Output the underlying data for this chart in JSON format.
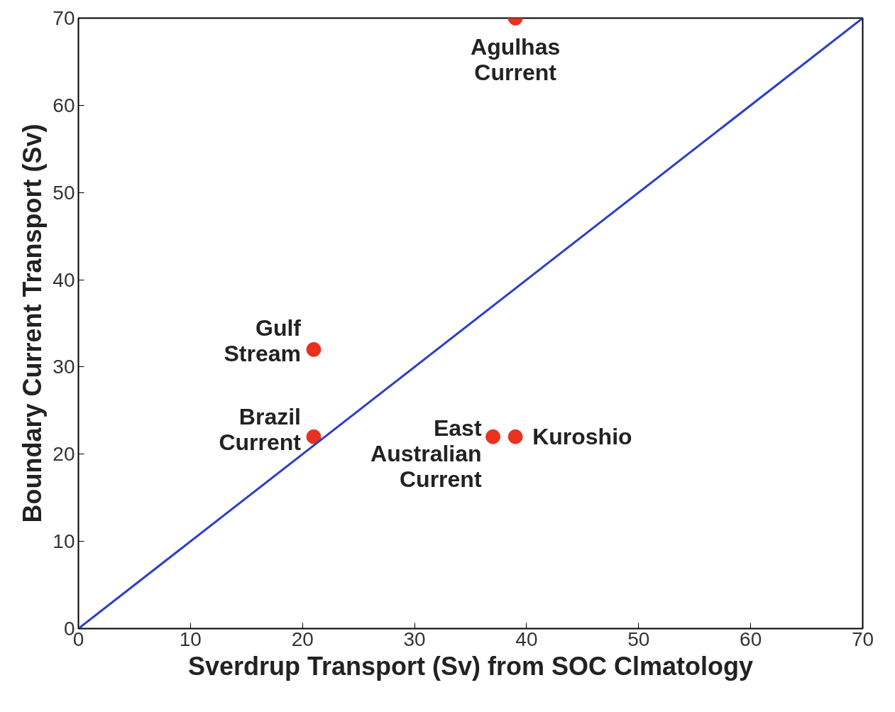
{
  "chart_data": {
    "type": "scatter",
    "xlabel": "Sverdrup Transport (Sv) from SOC Clmatology",
    "ylabel": "Boundary Current Transport (Sv)",
    "series": [
      {
        "color": "#e8321e",
        "marker": "circle",
        "x": [
          39,
          21,
          21,
          37,
          39
        ],
        "values": [
          70,
          32,
          22,
          22,
          22
        ]
      },
      {
        "type": "line",
        "color": "#2a3fc9",
        "x": [
          0,
          70
        ],
        "values": [
          0,
          70
        ]
      }
    ],
    "annotations": [
      {
        "text": "Agulhas\nCurrent",
        "x": 39,
        "y": 70
      },
      {
        "text": "Gulf\nStream",
        "x": 21,
        "y": 32
      },
      {
        "text": "Brazil\nCurrent",
        "x": 21,
        "y": 22
      },
      {
        "text": "East\nAustralian\nCurrent",
        "x": 37,
        "y": 22
      },
      {
        "text": "Kuroshio",
        "x": 39,
        "y": 22
      }
    ],
    "xlim": [
      0,
      70
    ],
    "ylim": [
      0,
      70
    ],
    "xticks": [
      0,
      10,
      20,
      30,
      40,
      50,
      60,
      70
    ],
    "yticks": [
      0,
      10,
      20,
      30,
      40,
      50,
      60,
      70
    ],
    "grid": false
  }
}
